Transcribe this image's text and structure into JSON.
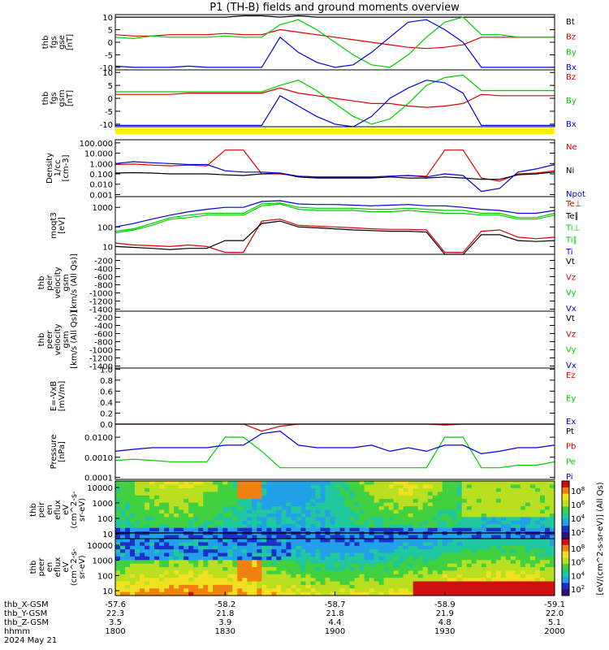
{
  "chart_data": {
    "title": "P1 (TH-B) fields and ground moments overview",
    "type": "line",
    "x_axis": {
      "tick_labels": [
        "1800",
        "1830",
        "1900",
        "1930",
        "2000"
      ],
      "ephemeris": [
        {
          "label": "thb_X-GSM",
          "values": [
            "-57.6",
            "-58.2",
            "-58.7",
            "-58.9",
            "-59.1"
          ]
        },
        {
          "label": "thb_Y-GSM",
          "values": [
            "22.3",
            "21.8",
            "21.8",
            "21.9",
            "22.0"
          ]
        },
        {
          "label": "thb_Z-GSM",
          "values": [
            "3.5",
            "3.9",
            "4.4",
            "4.8",
            "5.1"
          ]
        },
        {
          "label": "hhmm",
          "values": [
            "1800",
            "1830",
            "1900",
            "1930",
            "2000"
          ]
        }
      ],
      "date": "2024 May 21"
    },
    "panels": [
      {
        "ylabel": [
          "thb",
          "fgs",
          "gse",
          "[nT]"
        ],
        "yticks": [
          "10",
          "5",
          "0",
          "-5",
          "-10"
        ],
        "ylim": [
          -11,
          11
        ],
        "series": [
          {
            "name": "Bt",
            "color": "#000000",
            "values": [
              10,
              10,
              10,
              10,
              10,
              10,
              10,
              10.5,
              10.5,
              10,
              10.5,
              10,
              10,
              10,
              10,
              10,
              10,
              10,
              10,
              10,
              10,
              10,
              10,
              10,
              10
            ]
          },
          {
            "name": "Bz",
            "color": "#dd0000",
            "values": [
              3,
              2.5,
              2.5,
              3,
              3,
              3,
              3.5,
              3,
              3,
              5,
              4,
              3,
              2,
              1,
              0,
              -1,
              -2,
              -2.5,
              -2,
              -1,
              2,
              2,
              2,
              2,
              2
            ]
          },
          {
            "name": "By",
            "color": "#00cc00",
            "values": [
              2,
              1.5,
              2.5,
              2,
              2,
              2,
              2.5,
              2,
              2,
              7,
              9,
              5,
              0,
              -5,
              -9,
              -10,
              -5,
              2,
              8,
              10,
              3,
              3,
              2,
              2,
              2
            ]
          },
          {
            "name": "Bx",
            "color": "#0000dd",
            "values": [
              -9.5,
              -10,
              -10,
              -10,
              -9.5,
              -10,
              -10,
              -10,
              -10,
              2,
              -4,
              -8,
              -10,
              -9,
              -4,
              2,
              8,
              9,
              5,
              0,
              -10,
              -10,
              -10,
              -10,
              -10
            ]
          }
        ]
      },
      {
        "ylabel": [
          "thb",
          "fgs",
          "gsm",
          "[nT]"
        ],
        "yticks": [
          "10",
          "5",
          "0",
          "-5",
          "-10"
        ],
        "ylim": [
          -11,
          11
        ],
        "series": [
          {
            "name": "Bz",
            "color": "#dd0000",
            "values": [
              1.5,
              1.5,
              1.5,
              1.5,
              2,
              2,
              2,
              2,
              2,
              4,
              2,
              1,
              0,
              -1,
              -2,
              -2,
              -3,
              -3.5,
              -3,
              -2,
              1.5,
              1,
              1,
              1,
              1
            ]
          },
          {
            "name": "By",
            "color": "#00cc00",
            "values": [
              2.5,
              2.5,
              2.5,
              2.5,
              2.5,
              2.5,
              2.5,
              2.5,
              2.5,
              5,
              7,
              3,
              -2,
              -7,
              -10,
              -8,
              -2,
              5,
              8,
              9,
              3,
              3,
              3,
              3,
              3
            ]
          },
          {
            "name": "Bx",
            "color": "#0000dd",
            "values": [
              -10.5,
              -10.5,
              -10.5,
              -10.5,
              -10.5,
              -10.5,
              -10.5,
              -10.5,
              -10.5,
              1,
              -3,
              -7,
              -10,
              -11,
              -7,
              0,
              4,
              7,
              6,
              2,
              -10.5,
              -10.5,
              -10.5,
              -10.5,
              -10.5
            ]
          }
        ]
      },
      {
        "ylabel": [
          "Density",
          "1/cc",
          "[cm-3]"
        ],
        "scale": "log",
        "yticks": [
          "100.000",
          "10.000",
          "1.000",
          "0.100",
          "0.010",
          "0.001"
        ],
        "ylim": [
          -3.2,
          2.3
        ],
        "series": [
          {
            "name": "Ne",
            "color": "#dd0000",
            "values": [
              0.8,
              0.9,
              0.7,
              0.6,
              0.7,
              0.6,
              20,
              20,
              0.1,
              0.1,
              0.06,
              0.05,
              0.05,
              0.05,
              0.05,
              0.06,
              0.07,
              0.06,
              20,
              20,
              0.04,
              0.02,
              0.1,
              0.12,
              0.2
            ]
          },
          {
            "name": "Ni",
            "color": "#000000",
            "values": [
              0.12,
              0.13,
              0.12,
              0.1,
              0.1,
              0.1,
              0.08,
              0.07,
              0.1,
              0.12,
              0.05,
              0.04,
              0.04,
              0.04,
              0.04,
              0.05,
              0.04,
              0.04,
              0.05,
              0.04,
              0.03,
              0.03,
              0.08,
              0.1,
              0.15
            ]
          },
          {
            "name": "Npot",
            "color": "#0000dd",
            "values": [
              1,
              1.5,
              1.2,
              1,
              0.8,
              0.8,
              0.2,
              0.15,
              0.15,
              0.12,
              0.06,
              0.05,
              0.05,
              0.05,
              0.05,
              0.06,
              0.07,
              0.05,
              0.1,
              0.07,
              0.002,
              0.004,
              0.15,
              0.3,
              0.8
            ]
          }
        ]
      },
      {
        "ylabel": [
          "moqt3",
          "[eV]"
        ],
        "scale": "log",
        "yticks": [
          "1000",
          "100",
          "10"
        ],
        "ylim": [
          0.6,
          3.55
        ],
        "series": [
          {
            "name": "Te⊥",
            "color": "#dd0000",
            "values": [
              15,
              12,
              11,
              10,
              12,
              10,
              5,
              5,
              200,
              250,
              120,
              110,
              100,
              90,
              80,
              75,
              75,
              70,
              5,
              5,
              60,
              70,
              30,
              25,
              30
            ]
          },
          {
            "name": "Te∥",
            "color": "#000000",
            "values": [
              10,
              9,
              8,
              7,
              8,
              8,
              20,
              20,
              150,
              200,
              100,
              90,
              80,
              70,
              65,
              60,
              60,
              55,
              4,
              4,
              40,
              40,
              20,
              18,
              20
            ]
          },
          {
            "name": "Ti⊥",
            "color": "#00cc00",
            "values": [
              60,
              80,
              150,
              300,
              400,
              500,
              500,
              500,
              1500,
              1700,
              1000,
              900,
              900,
              900,
              800,
              800,
              900,
              800,
              700,
              700,
              500,
              500,
              300,
              300,
              500
            ]
          },
          {
            "name": "Ti∥",
            "color": "#00cc00",
            "values": [
              50,
              70,
              120,
              250,
              300,
              400,
              400,
              400,
              1200,
              1500,
              800,
              700,
              700,
              700,
              600,
              600,
              700,
              600,
              500,
              500,
              400,
              400,
              250,
              250,
              400
            ]
          },
          {
            "name": "Ti",
            "color": "#0000dd",
            "values": [
              100,
              150,
              250,
              400,
              600,
              800,
              1000,
              1000,
              2000,
              2200,
              1500,
              1400,
              1400,
              1300,
              1200,
              1300,
              1400,
              1200,
              1200,
              1000,
              800,
              700,
              500,
              500,
              700
            ]
          }
        ]
      },
      {
        "ylabel": [
          "thb",
          "peir",
          "velocity",
          "gsm",
          "[km/s (All Qs)]"
        ],
        "yticks": [
          "-200",
          "-400",
          "-600",
          "-800",
          "-1000",
          "-1200",
          "-1400"
        ],
        "ylim": [
          -1450,
          -50
        ],
        "series": [
          {
            "name": "Vt",
            "color": "#000000",
            "values": []
          },
          {
            "name": "Vz",
            "color": "#dd0000",
            "values": []
          },
          {
            "name": "Vy",
            "color": "#00cc00",
            "values": []
          },
          {
            "name": "Vx",
            "color": "#0000dd",
            "values": []
          }
        ]
      },
      {
        "ylabel": [
          "thb",
          "peer",
          "velocity",
          "gsm",
          "[km/s (All Qs)]"
        ],
        "yticks": [
          "-200",
          "-400",
          "-600",
          "-800",
          "-1000",
          "-1200",
          "-1400"
        ],
        "ylim": [
          -1450,
          -50
        ],
        "series": [
          {
            "name": "Vt",
            "color": "#000000",
            "values": []
          },
          {
            "name": "Vz",
            "color": "#dd0000",
            "values": []
          },
          {
            "name": "Vy",
            "color": "#00cc00",
            "values": []
          },
          {
            "name": "Vx",
            "color": "#0000dd",
            "values": []
          }
        ]
      },
      {
        "ylabel": [
          "E=-VxB",
          "[mV/m]"
        ],
        "yticks": [
          "1.0",
          "0.8",
          "0.6",
          "0.4",
          "0.2",
          "0.0"
        ],
        "ylim": [
          0,
          1.02
        ],
        "series": [
          {
            "name": "Ez",
            "color": "#dd0000",
            "values": []
          },
          {
            "name": "Ey",
            "color": "#00cc00",
            "values": []
          },
          {
            "name": "Ex",
            "color": "#0000dd",
            "values": []
          }
        ]
      },
      {
        "ylabel": [
          "Pressure",
          "[nPa]"
        ],
        "scale": "log",
        "yticks": [
          "0.0100",
          "0.0010",
          "0.0001"
        ],
        "ylim": [
          -4.1,
          -1.35
        ],
        "series": [
          {
            "name": "Pt",
            "color": "#000000",
            "values": [
              0.055,
              0.055,
              0.055,
              0.055,
              0.055,
              0.055,
              0.055,
              0.055,
              0.05,
              0.055,
              0.055,
              0.055,
              0.055,
              0.055,
              0.055,
              0.055,
              0.055,
              0.055,
              0.055,
              0.055,
              0.055,
              0.055,
              0.055,
              0.055,
              0.055
            ]
          },
          {
            "name": "Pb",
            "color": "#dd0000",
            "values": [
              0.045,
              0.045,
              0.045,
              0.045,
              0.045,
              0.045,
              0.045,
              0.045,
              0.02,
              0.035,
              0.045,
              0.045,
              0.045,
              0.045,
              0.045,
              0.045,
              0.045,
              0.045,
              0.04,
              0.045,
              0.045,
              0.045,
              0.045,
              0.045,
              0.045
            ]
          },
          {
            "name": "Pe",
            "color": "#00cc00",
            "values": [
              0.0007,
              0.0008,
              0.0007,
              0.0006,
              0.0006,
              0.0006,
              0.01,
              0.01,
              0.002,
              0.0003,
              0.0003,
              0.0003,
              0.0003,
              0.0003,
              0.0003,
              0.0003,
              0.0003,
              0.0003,
              0.01,
              0.01,
              0.0003,
              0.0003,
              0.0004,
              0.0004,
              0.0006
            ]
          },
          {
            "name": "Pi",
            "color": "#0000dd",
            "values": [
              0.002,
              0.0025,
              0.003,
              0.003,
              0.003,
              0.003,
              0.004,
              0.004,
              0.015,
              0.02,
              0.004,
              0.003,
              0.003,
              0.003,
              0.004,
              0.002,
              0.003,
              0.002,
              0.004,
              0.004,
              0.0015,
              0.002,
              0.003,
              0.003,
              0.004
            ]
          }
        ]
      },
      {
        "ylabel": [
          "thb",
          "peir",
          "en",
          "eflux",
          "eV",
          "(cm^2-s-",
          "sr-eV)"
        ],
        "type": "heatmap",
        "yticks": [
          "10000",
          "1000",
          "100",
          "10"
        ]
      },
      {
        "ylabel": [
          "thb",
          "peer",
          "en",
          "eflux",
          "eV",
          "(cm^2-s-",
          "sr-eV)"
        ],
        "type": "heatmap",
        "yticks": [
          "10000",
          "1000",
          "100",
          "10"
        ]
      }
    ],
    "colorbar": {
      "label": "[eV/(cm^2-s-sr-eV)] (All Qs)",
      "ticks_top": [
        "10^8",
        "10^6",
        "10^4",
        "10^2"
      ],
      "ticks_bottom": [
        "10^8",
        "10^6",
        "10^4",
        "10^2"
      ]
    }
  }
}
